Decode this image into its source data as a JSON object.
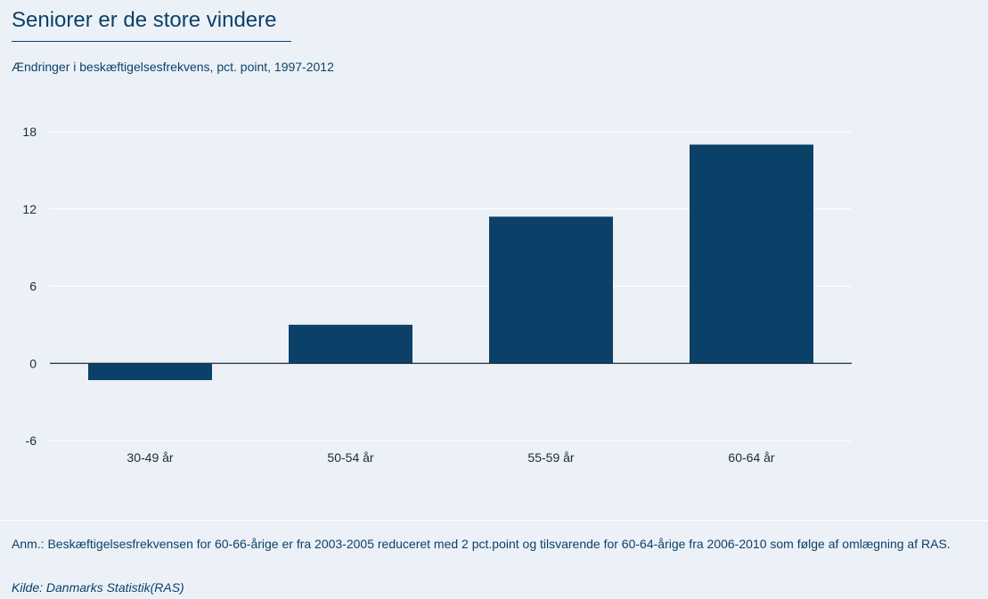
{
  "title": "Seniorer er de store vindere",
  "subtitle": "Ændringer i beskæftigelsesfrekvens, pct. point, 1997-2012",
  "footer": {
    "note": "Anm.: Beskæftigelsesfrekvensen for 60-66-årige er fra 2003-2005 reduceret med 2 pct.point og tilsvarende for 60-64-årige fra 2006-2010 som følge af omlægning af RAS.",
    "source": "Kilde: Danmarks Statistik(RAS)"
  },
  "colors": {
    "bar": "#0b4168",
    "background": "#ecf1f7",
    "gridline": "#ffffff",
    "axis": "#1c2a36"
  },
  "chart_data": {
    "type": "bar",
    "categories": [
      "30-49 år",
      "50-54 år",
      "55-59 år",
      "60-64 år"
    ],
    "values": [
      -1.3,
      3.0,
      11.4,
      17.0
    ],
    "yticks": [
      "18",
      "12",
      "6",
      "0",
      "-6"
    ],
    "ylim": [
      -6,
      18
    ],
    "grid": true,
    "legend": "none"
  }
}
